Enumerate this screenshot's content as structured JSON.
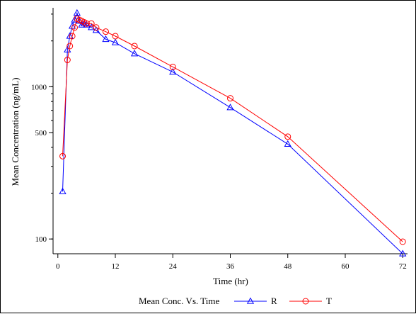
{
  "chart_data": {
    "type": "line",
    "title": "",
    "xlabel": "Time (hr)",
    "ylabel": "Mean Concentration (ng/mL)",
    "xlim": [
      -1,
      73
    ],
    "ylim": [
      80,
      3300
    ],
    "y_scale": "log",
    "x_ticks": [
      0,
      12,
      24,
      36,
      48,
      60,
      72
    ],
    "x_tick_labels": [
      "0",
      "12",
      "24",
      "36",
      "48",
      "60",
      "72"
    ],
    "y_ticks": [
      100,
      500,
      1000
    ],
    "y_tick_labels": [
      "100",
      "500",
      "1000"
    ],
    "grid": false,
    "legend": {
      "position": "bottom",
      "title": "Mean Conc. Vs. Time"
    },
    "series": [
      {
        "name": "R",
        "color": "#0000ff",
        "marker": "triangle",
        "x": [
          1,
          2,
          2.5,
          3,
          3.5,
          4,
          4.5,
          5,
          5.5,
          6,
          7,
          8,
          10,
          12,
          16,
          24,
          36,
          48,
          72
        ],
        "y": [
          205,
          1750,
          2150,
          2500,
          2750,
          3050,
          2700,
          2550,
          2600,
          2550,
          2450,
          2350,
          2050,
          1950,
          1650,
          1250,
          730,
          420,
          80
        ]
      },
      {
        "name": "T",
        "color": "#ff0000",
        "marker": "circle",
        "x": [
          1,
          2,
          2.5,
          3,
          3.5,
          4,
          4.5,
          5,
          5.5,
          6,
          7,
          8,
          10,
          12,
          16,
          24,
          36,
          48,
          72
        ],
        "y": [
          350,
          1500,
          1850,
          2150,
          2450,
          2800,
          2750,
          2700,
          2650,
          2600,
          2600,
          2450,
          2300,
          2150,
          1850,
          1350,
          840,
          470,
          96
        ]
      }
    ]
  }
}
